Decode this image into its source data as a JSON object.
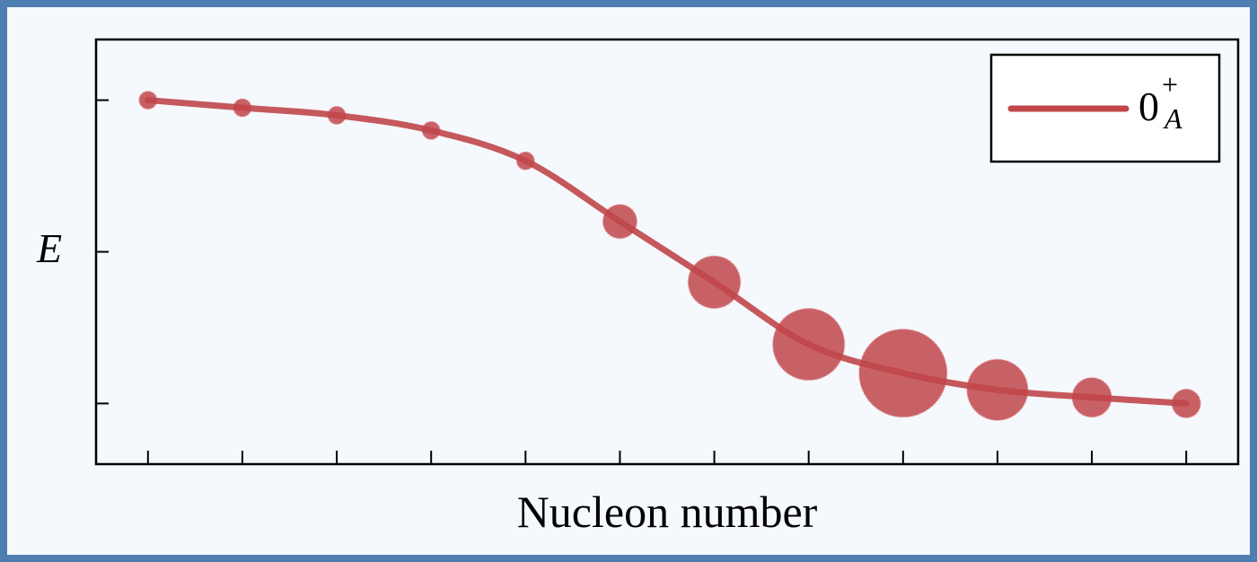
{
  "chart_data": {
    "type": "scatter",
    "xlabel": "Nucleon number",
    "ylabel": "E",
    "x": [
      1,
      2,
      3,
      4,
      5,
      6,
      7,
      8,
      9,
      10,
      11,
      12
    ],
    "y": [
      1.0,
      0.95,
      0.9,
      0.8,
      0.6,
      0.2,
      -0.2,
      -0.61,
      -0.8,
      -0.91,
      -0.96,
      -1.0
    ],
    "bubble_size": [
      0.1,
      0.1,
      0.1,
      0.1,
      0.1,
      0.25,
      0.42,
      0.6,
      0.75,
      0.5,
      0.3,
      0.2
    ],
    "series": [
      {
        "name": "0_A^+",
        "name_base": "0",
        "name_sup": "+",
        "name_sub": "A",
        "color": "#c0464a"
      }
    ],
    "ylim": [
      -1.4,
      1.4
    ],
    "xlim": [
      0.45,
      12.55
    ],
    "xticks": [
      1,
      2,
      3,
      4,
      5,
      6,
      7,
      8,
      9,
      10,
      11,
      12
    ],
    "yticks": [
      -1,
      0,
      1
    ],
    "grid": false,
    "legend_position": "top-right"
  }
}
